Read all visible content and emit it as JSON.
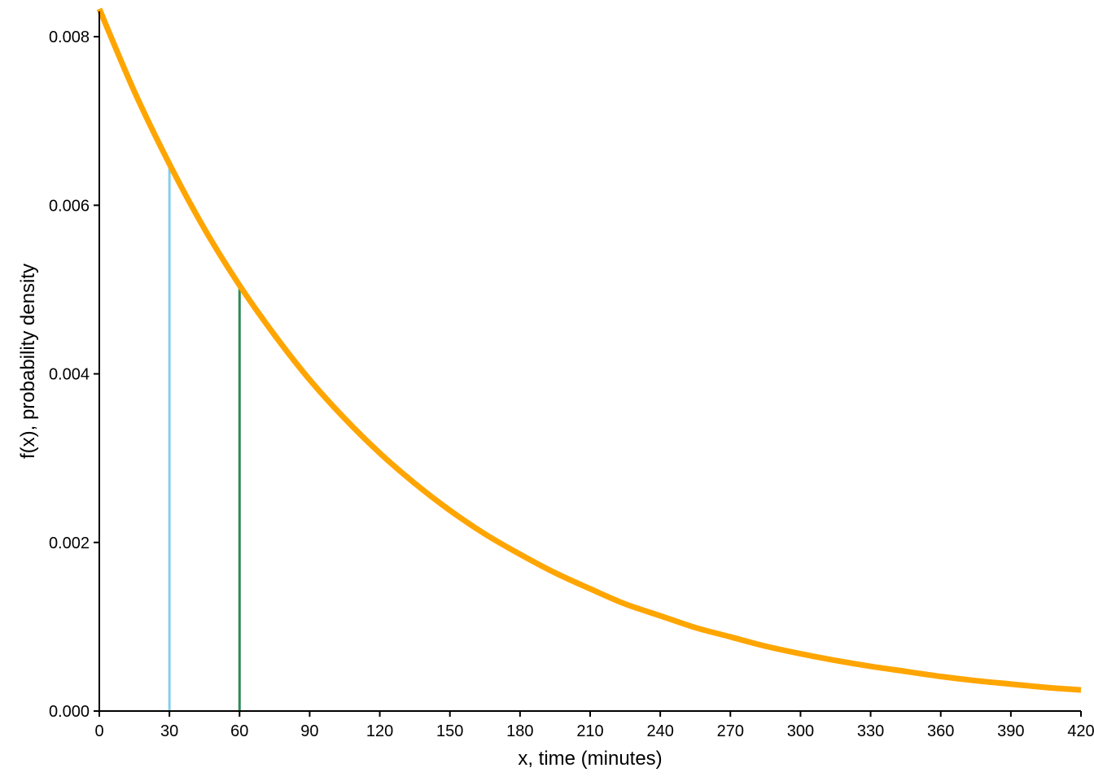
{
  "chart_data": {
    "type": "line",
    "title": "",
    "xlabel": "x, time (minutes)",
    "ylabel": "f(x), probability density",
    "xlim": [
      0,
      420
    ],
    "ylim": [
      0,
      0.0083
    ],
    "grid": false,
    "x_ticks": [
      0,
      30,
      60,
      90,
      120,
      150,
      180,
      210,
      240,
      270,
      300,
      330,
      360,
      390,
      420
    ],
    "x_tick_labels": [
      "0",
      "30",
      "60",
      "90",
      "120",
      "150",
      "180",
      "210",
      "240",
      "270",
      "300",
      "330",
      "360",
      "390",
      "420"
    ],
    "y_ticks": [
      0,
      0.002,
      0.004,
      0.006,
      0.008
    ],
    "y_tick_labels": [
      "0.000",
      "0.002",
      "0.004",
      "0.006",
      "0.008"
    ],
    "series": [
      {
        "color": "#FFA500",
        "x": [
          0,
          15,
          30,
          45,
          60,
          75,
          90,
          105,
          120,
          135,
          150,
          165,
          180,
          195,
          210,
          225,
          240,
          255,
          270,
          285,
          300,
          315,
          330,
          345,
          360,
          375,
          390,
          405,
          420
        ],
        "y": [
          0.00833,
          0.00735,
          0.00649,
          0.00572,
          0.00505,
          0.00446,
          0.00393,
          0.00347,
          0.00306,
          0.0027,
          0.00238,
          0.0021,
          0.00186,
          0.00164,
          0.00145,
          0.00127,
          0.00113,
          0.00099,
          0.00088,
          0.00077,
          0.00068,
          0.0006,
          0.00053,
          0.00047,
          0.00041,
          0.00036,
          0.00032,
          0.00028,
          0.00025
        ]
      }
    ],
    "vlines": [
      {
        "x": 30,
        "y": 0.00649,
        "color": "#87CEEB"
      },
      {
        "x": 60,
        "y": 0.00505,
        "color": "#2E8B57"
      }
    ]
  }
}
